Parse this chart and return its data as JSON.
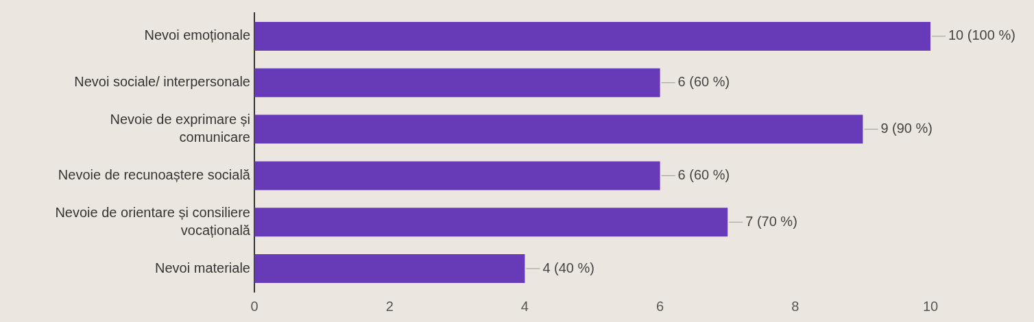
{
  "chart_data": {
    "type": "bar",
    "orientation": "horizontal",
    "categories": [
      "Nevoi emoționale",
      "Nevoi sociale/ interpersonale",
      "Nevoie de exprimare și comunicare",
      "Nevoie de recunoaștere socială",
      "Nevoie de orientare și consiliere vocațională",
      "Nevoi materiale"
    ],
    "values": [
      10,
      6,
      9,
      6,
      7,
      4
    ],
    "value_labels": [
      "10 (100 %)",
      "6 (60 %)",
      "9 (90 %)",
      "6 (60 %)",
      "7 (70 %)",
      "4 (40 %)"
    ],
    "color": "#673ab7",
    "xlim": [
      0,
      10
    ],
    "xticks": [
      0,
      2,
      4,
      6,
      8,
      10
    ],
    "grid": false,
    "legend": false
  }
}
